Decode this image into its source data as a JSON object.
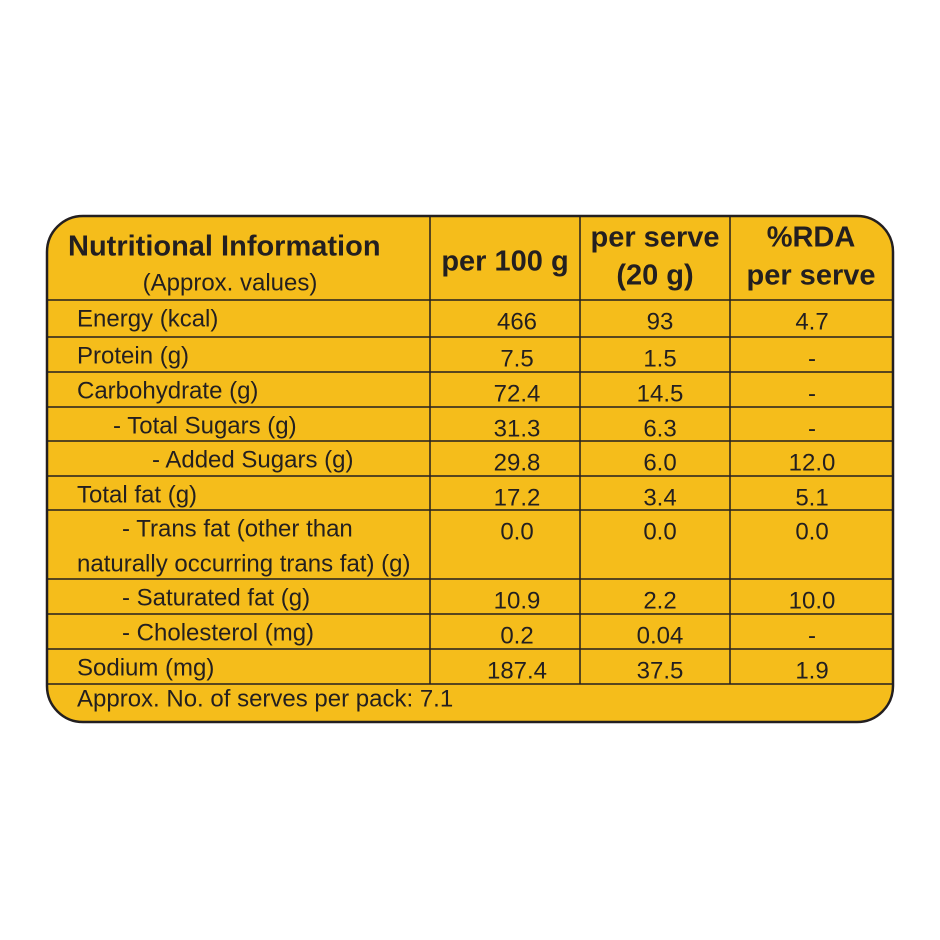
{
  "header": {
    "title": "Nutritional Information",
    "subtitle": "(Approx. values)",
    "columns": [
      [
        "per 100 g"
      ],
      [
        "per serve",
        "(20 g)"
      ],
      [
        "%RDA",
        "per serve"
      ]
    ]
  },
  "table": {
    "rows": [
      {
        "nutrient": [
          "Energy (kcal)"
        ],
        "per_100g": "466",
        "per_serve": "93",
        "rda": "4.7"
      },
      {
        "nutrient": [
          "Protein (g)"
        ],
        "per_100g": "7.5",
        "per_serve": "1.5",
        "rda": "-"
      },
      {
        "nutrient": [
          "Carbohydrate (g)"
        ],
        "per_100g": "72.4",
        "per_serve": "14.5",
        "rda": "-"
      },
      {
        "nutrient": [
          "- Total Sugars (g)"
        ],
        "per_100g": "31.3",
        "per_serve": "6.3",
        "rda": "-"
      },
      {
        "nutrient": [
          "- Added Sugars (g)"
        ],
        "per_100g": "29.8",
        "per_serve": "6.0",
        "rda": "12.0"
      },
      {
        "nutrient": [
          "Total fat (g)"
        ],
        "per_100g": "17.2",
        "per_serve": "3.4",
        "rda": "5.1"
      },
      {
        "nutrient": [
          "- Trans fat (other than",
          "naturally occurring trans fat) (g)"
        ],
        "per_100g": "0.0",
        "per_serve": "0.0",
        "rda": "0.0"
      },
      {
        "nutrient": [
          "- Saturated fat (g)"
        ],
        "per_100g": "10.9",
        "per_serve": "2.2",
        "rda": "10.0"
      },
      {
        "nutrient": [
          "- Cholesterol (mg)"
        ],
        "per_100g": "0.2",
        "per_serve": "0.04",
        "rda": "-"
      },
      {
        "nutrient": [
          "Sodium (mg)"
        ],
        "per_100g": "187.4",
        "per_serve": "37.5",
        "rda": "1.9"
      }
    ]
  },
  "footer": "Approx. No. of serves per pack: 7.1"
}
